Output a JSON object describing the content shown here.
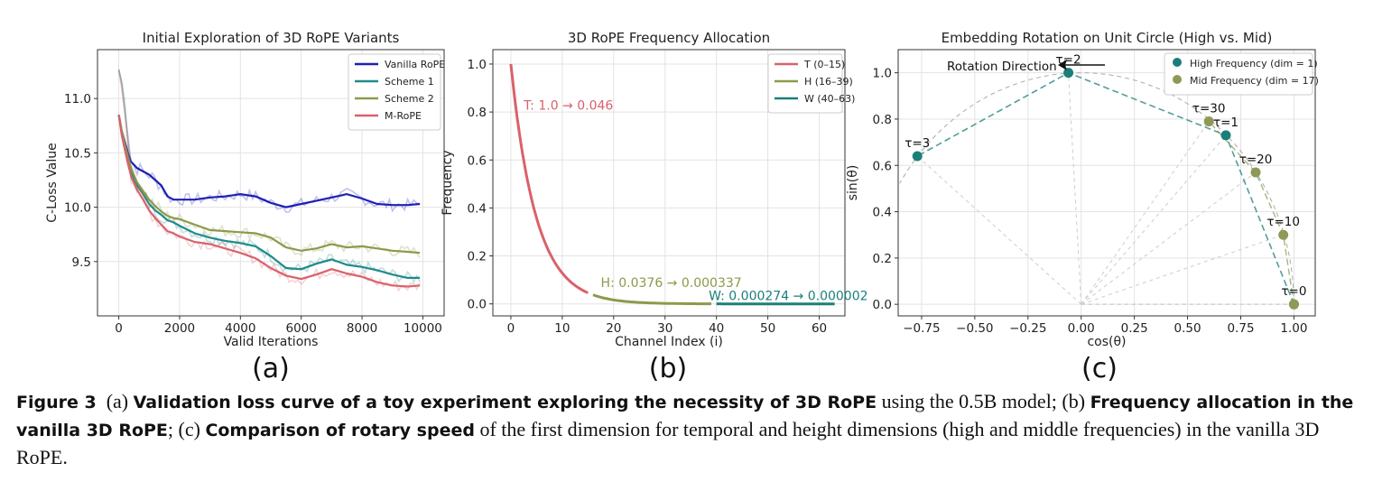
{
  "figure_number_label": "Figure 3",
  "caption_parts": [
    {
      "text": "(a) ",
      "bold": false
    },
    {
      "text": "Validation loss curve of a toy experiment exploring the necessity of 3D RoPE",
      "bold": true
    },
    {
      "text": " using the 0.5B model; (b) ",
      "bold": false
    },
    {
      "text": "Frequency allocation in the vanilla 3D RoPE",
      "bold": true
    },
    {
      "text": "; (c) ",
      "bold": false
    },
    {
      "text": "Comparison of rotary speed",
      "bold": true
    },
    {
      "text": " of the first dimension for temporal and height dimensions (high and middle frequencies) in the vanilla 3D RoPE.",
      "bold": false
    }
  ],
  "panel_labels": [
    "(a)",
    "(b)",
    "(c)"
  ],
  "colors": {
    "vanilla": "#1f1fb4",
    "scheme1": "#1f8a8a",
    "scheme2": "#8c9a4a",
    "mrope": "#d9616b",
    "teal": "#1a7f7a",
    "olive": "#8c9a55",
    "grid": "#e3e3e3"
  },
  "chart_data": [
    {
      "type": "line",
      "title": "Initial Exploration of 3D RoPE Variants",
      "xlabel": "Valid Iterations",
      "ylabel": "C-Loss Value",
      "xlim": [
        -700,
        10700
      ],
      "ylim": [
        9.0,
        11.45
      ],
      "xticks": [
        0,
        2000,
        4000,
        6000,
        8000,
        10000
      ],
      "xtick_labels": [
        "0",
        "2000",
        "4000",
        "6000",
        "8000",
        "10000"
      ],
      "yticks": [
        9.5,
        10.0,
        10.5,
        11.0
      ],
      "ytick_labels": [
        "9.5",
        "10.0",
        "10.5",
        "11.0"
      ],
      "grid": true,
      "legend_position": "top-right",
      "series": [
        {
          "name": "Vanilla RoPE",
          "color": "#1f1fb4",
          "x": [
            0,
            100,
            200,
            300,
            400,
            600,
            800,
            1000,
            1200,
            1400,
            1600,
            1800,
            2000,
            2500,
            3000,
            3500,
            4000,
            4500,
            5000,
            5500,
            6000,
            6500,
            7000,
            7500,
            8000,
            8500,
            9000,
            9500,
            9900
          ],
          "y": [
            10.85,
            10.7,
            10.6,
            10.5,
            10.42,
            10.36,
            10.33,
            10.3,
            10.25,
            10.2,
            10.1,
            10.07,
            10.07,
            10.07,
            10.09,
            10.1,
            10.12,
            10.1,
            10.04,
            10.0,
            10.03,
            10.06,
            10.09,
            10.12,
            10.08,
            10.03,
            10.02,
            10.02,
            10.03
          ]
        },
        {
          "name": "Scheme 1",
          "color": "#1f8a8a",
          "x": [
            0,
            100,
            200,
            300,
            400,
            600,
            800,
            1000,
            1200,
            1400,
            1600,
            1800,
            2000,
            2500,
            3000,
            3500,
            4000,
            4500,
            5000,
            5500,
            6000,
            6500,
            7000,
            7500,
            8000,
            8500,
            9000,
            9500,
            9900
          ],
          "y": [
            10.85,
            10.68,
            10.55,
            10.43,
            10.33,
            10.2,
            10.12,
            10.03,
            9.97,
            9.93,
            9.88,
            9.86,
            9.83,
            9.76,
            9.72,
            9.69,
            9.67,
            9.64,
            9.55,
            9.44,
            9.43,
            9.48,
            9.52,
            9.47,
            9.45,
            9.42,
            9.38,
            9.35,
            9.35
          ]
        },
        {
          "name": "Scheme 2",
          "color": "#8c9a4a",
          "x": [
            0,
            100,
            200,
            300,
            400,
            600,
            800,
            1000,
            1200,
            1400,
            1600,
            1800,
            2000,
            2500,
            3000,
            3500,
            4000,
            4500,
            5000,
            5500,
            6000,
            6500,
            7000,
            7500,
            8000,
            8500,
            9000,
            9500,
            9900
          ],
          "y": [
            10.85,
            10.7,
            10.58,
            10.46,
            10.36,
            10.23,
            10.15,
            10.07,
            10.01,
            9.96,
            9.92,
            9.9,
            9.89,
            9.84,
            9.79,
            9.78,
            9.77,
            9.76,
            9.72,
            9.63,
            9.6,
            9.62,
            9.66,
            9.63,
            9.64,
            9.62,
            9.6,
            9.59,
            9.58
          ]
        },
        {
          "name": "M-RoPE",
          "color": "#d9616b",
          "x": [
            0,
            100,
            200,
            300,
            400,
            600,
            800,
            1000,
            1200,
            1400,
            1600,
            1800,
            2000,
            2500,
            3000,
            3500,
            4000,
            4500,
            5000,
            5500,
            6000,
            6500,
            7000,
            7500,
            8000,
            8500,
            9000,
            9500,
            9900
          ],
          "y": [
            10.85,
            10.66,
            10.53,
            10.4,
            10.29,
            10.16,
            10.07,
            9.97,
            9.9,
            9.84,
            9.78,
            9.76,
            9.73,
            9.68,
            9.66,
            9.62,
            9.58,
            9.53,
            9.44,
            9.37,
            9.34,
            9.38,
            9.43,
            9.39,
            9.36,
            9.31,
            9.28,
            9.27,
            9.28
          ]
        }
      ]
    },
    {
      "type": "line",
      "title": "3D RoPE Frequency Allocation",
      "xlabel": "Channel Index (i)",
      "ylabel": "Frequency",
      "xlim": [
        -3.5,
        65
      ],
      "ylim": [
        -0.05,
        1.06
      ],
      "xticks": [
        0,
        10,
        20,
        30,
        40,
        50,
        60
      ],
      "xtick_labels": [
        "0",
        "10",
        "20",
        "30",
        "40",
        "50",
        "60"
      ],
      "yticks": [
        0.0,
        0.2,
        0.4,
        0.6,
        0.8,
        1.0
      ],
      "ytick_labels": [
        "0.0",
        "0.2",
        "0.4",
        "0.6",
        "0.8",
        "1.0"
      ],
      "grid": true,
      "legend_position": "top-right",
      "series": [
        {
          "name": "T (0–15)",
          "color": "#d9616b",
          "x_range": [
            0,
            15
          ],
          "start_value": 1.0,
          "end_value": 0.046
        },
        {
          "name": "H (16–39)",
          "color": "#8c9a4a",
          "x_range": [
            16,
            39
          ],
          "start_value": 0.0376,
          "end_value": 0.000337
        },
        {
          "name": "W (40–63)",
          "color": "#1a7f7a",
          "x_range": [
            40,
            63
          ],
          "start_value": 0.000274,
          "end_value": 2e-06
        }
      ],
      "annotations": [
        {
          "text": "T: 1.0 → 0.046",
          "x": 2.5,
          "y": 0.81,
          "color": "#d9616b"
        },
        {
          "text": "H: 0.0376 → 0.000337",
          "x": 17.5,
          "y": 0.07,
          "color": "#8c9a4a"
        },
        {
          "text": "W: 0.000274 → 0.000002",
          "x": 38.5,
          "y": 0.015,
          "color": "#1a7f7a"
        }
      ]
    },
    {
      "type": "scatter",
      "title": "Embedding Rotation on Unit Circle (High vs. Mid)",
      "xlabel": "cos(θ)",
      "ylabel": "sin(θ)",
      "xlim": [
        -0.86,
        1.1
      ],
      "ylim": [
        -0.05,
        1.1
      ],
      "xticks": [
        -0.75,
        -0.5,
        -0.25,
        0.0,
        0.25,
        0.5,
        0.75,
        1.0
      ],
      "xtick_labels": [
        "−0.75",
        "−0.50",
        "−0.25",
        "0.00",
        "0.25",
        "0.50",
        "0.75",
        "1.00"
      ],
      "yticks": [
        0.0,
        0.2,
        0.4,
        0.6,
        0.8,
        1.0
      ],
      "ytick_labels": [
        "0.0",
        "0.2",
        "0.4",
        "0.6",
        "0.8",
        "1.0"
      ],
      "grid": true,
      "legend_position": "top-right",
      "arrow_label": "Rotation Direction",
      "series": [
        {
          "name": "High Frequency (dim = 1)",
          "color": "#1a7f7a",
          "points": [
            {
              "label": "τ=0",
              "x": 1.0,
              "y": 0.0
            },
            {
              "label": "τ=1",
              "x": 0.68,
              "y": 0.73
            },
            {
              "label": "τ=2",
              "x": -0.06,
              "y": 1.0
            },
            {
              "label": "τ=3",
              "x": -0.77,
              "y": 0.64
            }
          ]
        },
        {
          "name": "Mid Frequency (dim = 17)",
          "color": "#8c9a55",
          "points": [
            {
              "label": "τ=0",
              "x": 1.0,
              "y": 0.0
            },
            {
              "label": "τ=10",
              "x": 0.95,
              "y": 0.3
            },
            {
              "label": "τ=20",
              "x": 0.82,
              "y": 0.57
            },
            {
              "label": "τ=30",
              "x": 0.6,
              "y": 0.79
            }
          ]
        }
      ]
    }
  ]
}
